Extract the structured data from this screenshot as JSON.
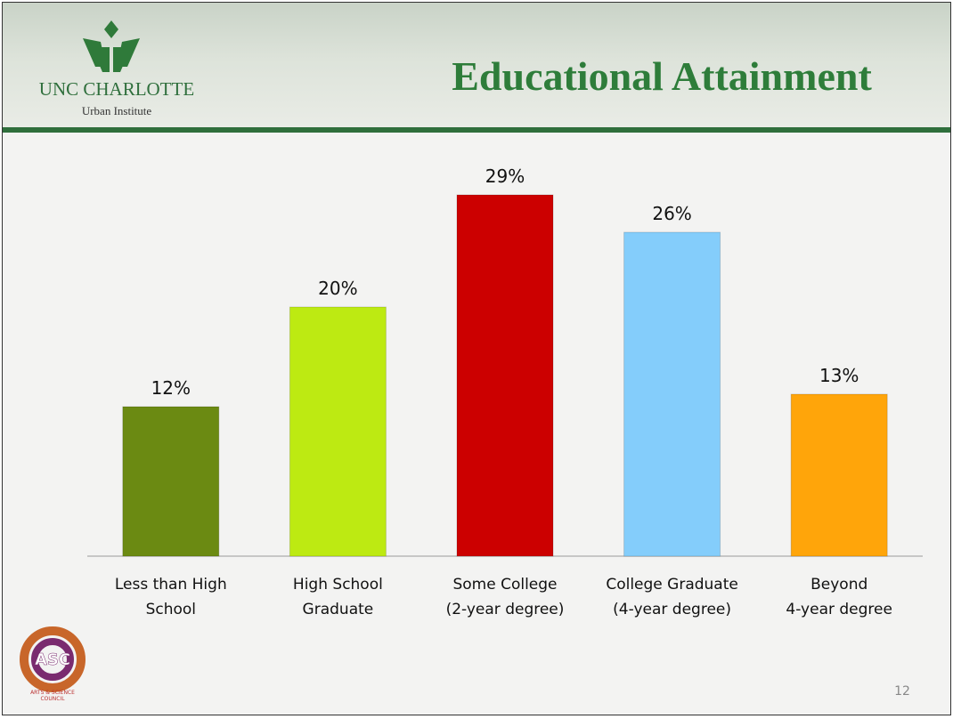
{
  "header": {
    "logo_title": "UNC CHARLOTTE",
    "logo_subtitle": "Urban Institute"
  },
  "chart_data": {
    "type": "bar",
    "title": "Educational Attainment",
    "categories": [
      "Less than High\nSchool",
      "High School\nGraduate",
      "Some College\n(2-year degree)",
      "College Graduate\n(4-year degree)",
      "Beyond\n4-year degree"
    ],
    "values": [
      12,
      20,
      29,
      26,
      13
    ],
    "value_labels": [
      "12%",
      "20%",
      "29%",
      "26%",
      "13%"
    ],
    "colors": [
      "#6b8a12",
      "#bdea12",
      "#cc0000",
      "#84cdfb",
      "#ffa50a"
    ]
  },
  "footer": {
    "logo_text": "ASC",
    "logo_caption": "ARTS & SCIENCE\nCOUNCIL",
    "page_number": "12"
  }
}
